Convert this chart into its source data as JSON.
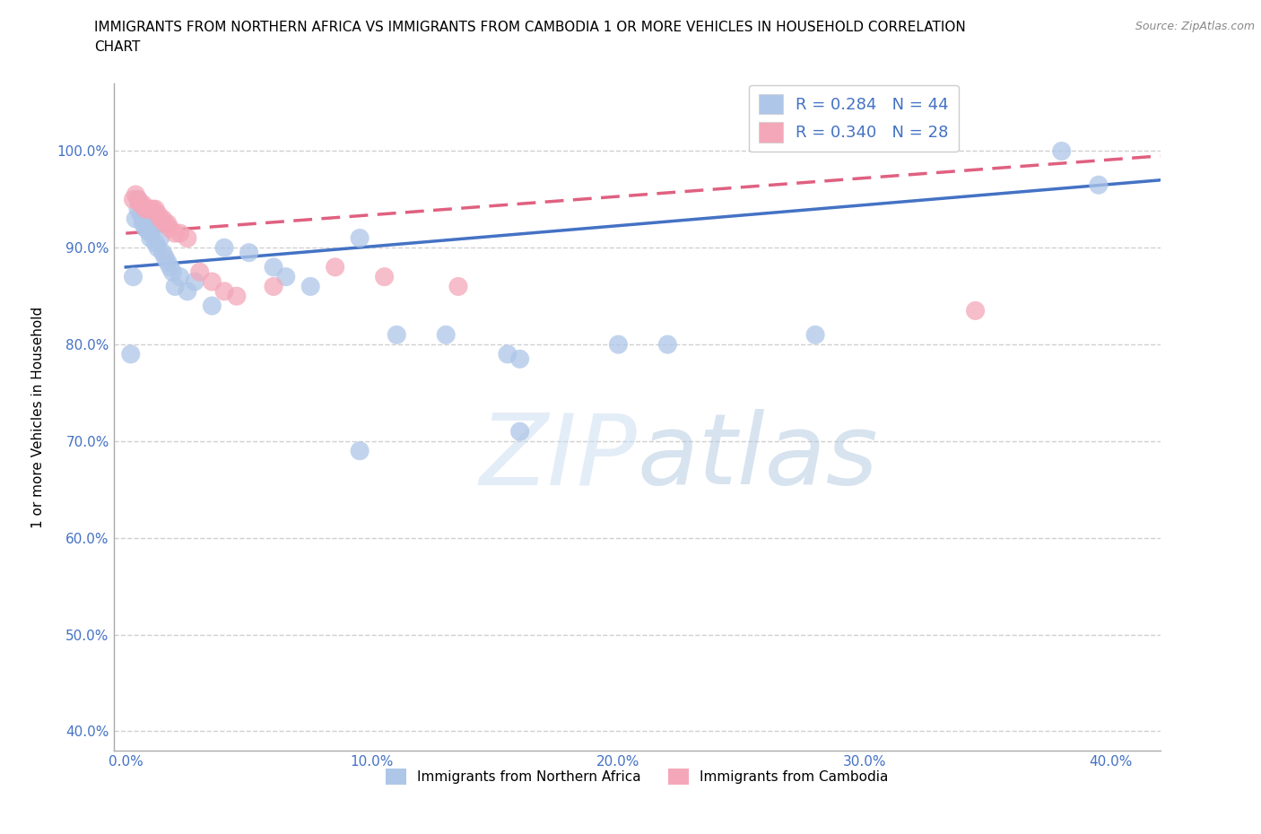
{
  "title_line1": "IMMIGRANTS FROM NORTHERN AFRICA VS IMMIGRANTS FROM CAMBODIA 1 OR MORE VEHICLES IN HOUSEHOLD CORRELATION",
  "title_line2": "CHART",
  "source_text": "Source: ZipAtlas.com",
  "ylabel": "1 or more Vehicles in Household",
  "xlim": [
    -0.005,
    0.42
  ],
  "ylim": [
    0.38,
    1.07
  ],
  "xtick_labels": [
    "0.0%",
    "10.0%",
    "20.0%",
    "30.0%",
    "40.0%"
  ],
  "xtick_vals": [
    0.0,
    0.1,
    0.2,
    0.3,
    0.4
  ],
  "ytick_labels": [
    "40.0%",
    "50.0%",
    "60.0%",
    "70.0%",
    "80.0%",
    "90.0%",
    "100.0%"
  ],
  "ytick_vals": [
    0.4,
    0.5,
    0.6,
    0.7,
    0.8,
    0.9,
    1.0
  ],
  "blue_R": 0.284,
  "blue_N": 44,
  "pink_R": 0.34,
  "pink_N": 28,
  "blue_color": "#aec6e8",
  "pink_color": "#f4a7b9",
  "blue_line_color": "#4472c4",
  "pink_line_color": "#e06080",
  "grid_color": "#d0d0d0",
  "legend_label_blue": "Immigrants from Northern Africa",
  "legend_label_pink": "Immigrants from Cambodia",
  "blue_scatter_x": [
    0.002,
    0.003,
    0.004,
    0.005,
    0.005,
    0.006,
    0.006,
    0.007,
    0.007,
    0.008,
    0.009,
    0.01,
    0.01,
    0.011,
    0.012,
    0.013,
    0.014,
    0.015,
    0.016,
    0.017,
    0.018,
    0.019,
    0.02,
    0.022,
    0.025,
    0.028,
    0.035,
    0.04,
    0.05,
    0.06,
    0.065,
    0.075,
    0.095,
    0.11,
    0.13,
    0.155,
    0.16,
    0.2,
    0.22,
    0.28,
    0.38,
    0.395,
    0.095,
    0.16
  ],
  "blue_scatter_y": [
    0.79,
    0.87,
    0.93,
    0.95,
    0.94,
    0.945,
    0.935,
    0.93,
    0.925,
    0.92,
    0.918,
    0.915,
    0.91,
    0.92,
    0.905,
    0.9,
    0.91,
    0.895,
    0.89,
    0.885,
    0.88,
    0.875,
    0.86,
    0.87,
    0.855,
    0.865,
    0.84,
    0.9,
    0.895,
    0.88,
    0.87,
    0.86,
    0.91,
    0.81,
    0.81,
    0.79,
    0.785,
    0.8,
    0.8,
    0.81,
    1.0,
    0.965,
    0.69,
    0.71
  ],
  "pink_scatter_x": [
    0.003,
    0.004,
    0.005,
    0.006,
    0.007,
    0.008,
    0.009,
    0.01,
    0.011,
    0.012,
    0.013,
    0.014,
    0.015,
    0.016,
    0.017,
    0.018,
    0.02,
    0.022,
    0.025,
    0.03,
    0.035,
    0.04,
    0.045,
    0.06,
    0.085,
    0.105,
    0.135,
    0.345
  ],
  "pink_scatter_y": [
    0.95,
    0.955,
    0.95,
    0.945,
    0.945,
    0.94,
    0.94,
    0.94,
    0.94,
    0.94,
    0.935,
    0.93,
    0.93,
    0.925,
    0.925,
    0.92,
    0.915,
    0.915,
    0.91,
    0.875,
    0.865,
    0.855,
    0.85,
    0.86,
    0.88,
    0.87,
    0.86,
    0.835
  ],
  "blue_trend_x": [
    0.0,
    0.42
  ],
  "blue_trend_y": [
    0.88,
    0.97
  ],
  "pink_trend_x": [
    0.0,
    0.42
  ],
  "pink_trend_y": [
    0.915,
    0.995
  ]
}
